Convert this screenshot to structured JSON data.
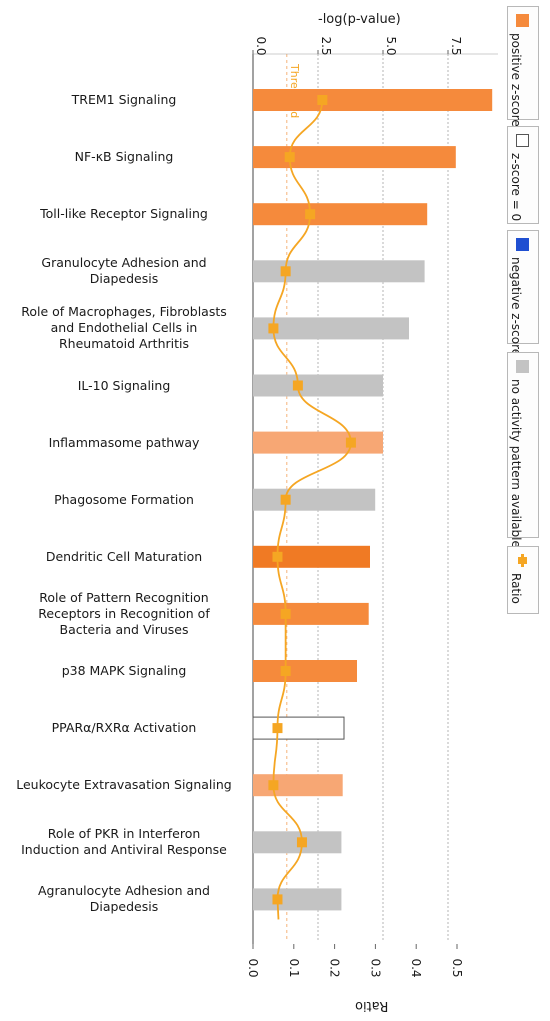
{
  "chart_data": {
    "type": "bar",
    "title": "",
    "xlabel_top": "-log(p-value)",
    "xlabel_bottom": "Ratio",
    "top_axis_ticks": [
      "0.0",
      "2.5",
      "5.0",
      "7.5"
    ],
    "bottom_axis_ticks": [
      "0.0",
      "0.1",
      "0.2",
      "0.3",
      "0.4",
      "0.5"
    ],
    "top_axis_range": [
      0,
      9.5
    ],
    "bottom_axis_range": [
      0,
      0.59
    ],
    "threshold": {
      "label": "Threshold",
      "value": 1.3
    },
    "grid": true,
    "legend_position": "right",
    "categories": [
      "TREM1 Signaling",
      "NF-κB Signaling",
      "Toll-like Receptor Signaling",
      "Granulocyte Adhesion and Diapedesis",
      "Role of Macrophages, Fibroblasts and Endothelial Cells in Rheumatoid Arthritis",
      "IL-10 Signaling",
      "Inflammasome pathway",
      "Phagosome Formation",
      "Dendritic Cell Maturation",
      "Role of Pattern Recognition Receptors in Recognition of Bacteria and Viruses",
      "p38 MAPK Signaling",
      "PPARα/RXRα Activation",
      "Leukocyte Extravasation Signaling",
      "Role of PKR in Interferon Induction and Antiviral Response",
      "Agranulocyte Adhesion and Diapedesis"
    ],
    "label_lines": [
      [
        "TREM1 Signaling"
      ],
      [
        "NF-κB Signaling"
      ],
      [
        "Toll-like Receptor Signaling"
      ],
      [
        "Granulocyte Adhesion and",
        "Diapedesis"
      ],
      [
        "Role of Macrophages, Fibroblasts",
        "and Endothelial Cells in",
        "Rheumatoid Arthritis"
      ],
      [
        "IL-10 Signaling"
      ],
      [
        "Inflammasome pathway"
      ],
      [
        "Phagosome Formation"
      ],
      [
        "Dendritic Cell Maturation"
      ],
      [
        "Role of Pattern Recognition",
        "Receptors in Recognition of",
        "Bacteria and Viruses"
      ],
      [
        "p38 MAPK Signaling"
      ],
      [
        "PPARα/RXRα Activation"
      ],
      [
        "Leukocyte Extravasation Signaling"
      ],
      [
        "Role of PKR in Interferon",
        "Induction and Antiviral Response"
      ],
      [
        "Agranulocyte Adhesion and",
        "Diapedesis"
      ]
    ],
    "neg_log_p": [
      9.2,
      7.8,
      6.7,
      6.6,
      6.0,
      5.0,
      5.0,
      4.7,
      4.5,
      4.45,
      4.0,
      3.5,
      3.45,
      3.4,
      3.4
    ],
    "ratio": [
      0.17,
      0.09,
      0.14,
      0.08,
      0.05,
      0.11,
      0.24,
      0.08,
      0.06,
      0.08,
      0.08,
      0.06,
      0.05,
      0.12,
      0.06
    ],
    "bar_category": [
      "positive",
      "positive",
      "positive",
      "none",
      "none",
      "none",
      "positive-light",
      "none",
      "positive-dark",
      "positive",
      "positive",
      "zero",
      "positive-light",
      "none",
      "none"
    ],
    "legend": [
      {
        "label": "positive z-score",
        "color": "#f58a3c",
        "style": "fill"
      },
      {
        "label": "z-score = 0",
        "color": "#ffffff",
        "style": "outline"
      },
      {
        "label": "negative z-score",
        "color": "#1f4fd1",
        "style": "fill"
      },
      {
        "label": "no activity pattern available",
        "color": "#c3c3c3",
        "style": "fill"
      },
      {
        "label": "Ratio",
        "color": "#f5a623",
        "style": "marker"
      }
    ]
  },
  "colors": {
    "positive": "#f58a3c",
    "positive-light": "#f7a774",
    "positive-dark": "#f07a24",
    "zero": "#ffffff",
    "none": "#c3c3c3",
    "ratio": "#f5a623",
    "grid": "#b5b5b5"
  }
}
